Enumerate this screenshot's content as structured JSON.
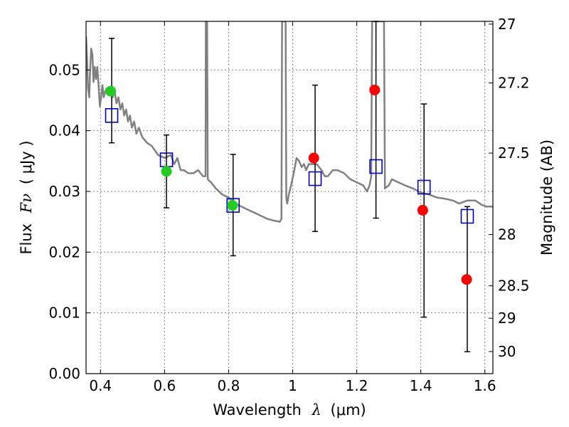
{
  "chart_data": {
    "type": "scatter",
    "xlabel": "Wavelength",
    "xlabel_symbol": "λ",
    "xlabel_unit": "(μm)",
    "ylabel": "Flux",
    "ylabel_symbol": "Fν",
    "ylabel_unit": "( μJy )",
    "y2label": "Magnitude (AB)",
    "xlim": [
      0.355,
      1.625
    ],
    "ylim": [
      0,
      0.058
    ],
    "grid": true,
    "x_ticks": [
      0.4,
      0.6,
      0.8,
      1.0,
      1.2,
      1.4,
      1.6
    ],
    "x_tick_labels": [
      "0.4",
      "0.6",
      "0.8",
      "1",
      "1.2",
      "1.4",
      "1.6"
    ],
    "y_ticks": [
      0.0,
      0.01,
      0.02,
      0.03,
      0.04,
      0.05
    ],
    "y_tick_labels": [
      "0.00",
      "0.01",
      "0.02",
      "0.03",
      "0.04",
      "0.05"
    ],
    "y2_ticks": [
      {
        "label": "27",
        "value": 27.0
      },
      {
        "label": "27.2",
        "value": 27.2
      },
      {
        "label": "27.5",
        "value": 27.5
      },
      {
        "label": "28",
        "value": 28.0
      },
      {
        "label": "28.5",
        "value": 28.5
      },
      {
        "label": "29",
        "value": 29.0
      },
      {
        "label": "30",
        "value": 30.0
      }
    ],
    "model_spectrum": {
      "color": "#808080",
      "points": [
        [
          0.355,
          0.0555
        ],
        [
          0.358,
          0.052
        ],
        [
          0.361,
          0.047
        ],
        [
          0.365,
          0.0455
        ],
        [
          0.368,
          0.0505
        ],
        [
          0.371,
          0.0535
        ],
        [
          0.375,
          0.0525
        ],
        [
          0.378,
          0.048
        ],
        [
          0.382,
          0.0505
        ],
        [
          0.386,
          0.0485
        ],
        [
          0.39,
          0.0505
        ],
        [
          0.394,
          0.0475
        ],
        [
          0.398,
          0.044
        ],
        [
          0.402,
          0.0455
        ],
        [
          0.406,
          0.0475
        ],
        [
          0.41,
          0.0455
        ],
        [
          0.415,
          0.0465
        ],
        [
          0.42,
          0.047
        ],
        [
          0.426,
          0.046
        ],
        [
          0.432,
          0.0465
        ],
        [
          0.438,
          0.0455
        ],
        [
          0.444,
          0.0465
        ],
        [
          0.45,
          0.0445
        ],
        [
          0.456,
          0.0455
        ],
        [
          0.462,
          0.0435
        ],
        [
          0.468,
          0.0445
        ],
        [
          0.474,
          0.0425
        ],
        [
          0.48,
          0.0435
        ],
        [
          0.486,
          0.0415
        ],
        [
          0.492,
          0.0425
        ],
        [
          0.498,
          0.0405
        ],
        [
          0.505,
          0.0415
        ],
        [
          0.512,
          0.0395
        ],
        [
          0.52,
          0.0405
        ],
        [
          0.53,
          0.039
        ],
        [
          0.545,
          0.038
        ],
        [
          0.56,
          0.0375
        ],
        [
          0.58,
          0.036
        ],
        [
          0.6,
          0.0355
        ],
        [
          0.62,
          0.036
        ],
        [
          0.63,
          0.0345
        ],
        [
          0.64,
          0.0355
        ],
        [
          0.65,
          0.0335
        ],
        [
          0.66,
          0.0335
        ],
        [
          0.675,
          0.033
        ],
        [
          0.69,
          0.033
        ],
        [
          0.705,
          0.0335
        ],
        [
          0.72,
          0.0325
        ],
        [
          0.728,
          0.0325
        ],
        [
          0.729,
          0.058
        ],
        [
          0.733,
          0.058
        ],
        [
          0.735,
          0.032
        ],
        [
          0.745,
          0.0315
        ],
        [
          0.76,
          0.0305
        ],
        [
          0.78,
          0.0295
        ],
        [
          0.8,
          0.029
        ],
        [
          0.82,
          0.028
        ],
        [
          0.84,
          0.0275
        ],
        [
          0.86,
          0.027
        ],
        [
          0.88,
          0.0265
        ],
        [
          0.9,
          0.026
        ],
        [
          0.92,
          0.0255
        ],
        [
          0.94,
          0.0252
        ],
        [
          0.96,
          0.025
        ],
        [
          0.965,
          0.0255
        ],
        [
          0.967,
          0.058
        ],
        [
          0.978,
          0.058
        ],
        [
          0.98,
          0.029
        ],
        [
          0.983,
          0.028
        ],
        [
          0.988,
          0.0295
        ],
        [
          0.995,
          0.031
        ],
        [
          1.005,
          0.0335
        ],
        [
          1.012,
          0.0355
        ],
        [
          1.02,
          0.035
        ],
        [
          1.028,
          0.034
        ],
        [
          1.035,
          0.0345
        ],
        [
          1.042,
          0.0335
        ],
        [
          1.05,
          0.0345
        ],
        [
          1.06,
          0.0345
        ],
        [
          1.075,
          0.0345
        ],
        [
          1.09,
          0.0335
        ],
        [
          1.1,
          0.0325
        ],
        [
          1.11,
          0.0325
        ],
        [
          1.125,
          0.0335
        ],
        [
          1.14,
          0.0335
        ],
        [
          1.16,
          0.033
        ],
        [
          1.18,
          0.032
        ],
        [
          1.2,
          0.0315
        ],
        [
          1.22,
          0.031
        ],
        [
          1.232,
          0.03
        ],
        [
          1.24,
          0.031
        ],
        [
          1.245,
          0.0325
        ],
        [
          1.248,
          0.058
        ],
        [
          1.285,
          0.058
        ],
        [
          1.288,
          0.0305
        ],
        [
          1.3,
          0.031
        ],
        [
          1.31,
          0.032
        ],
        [
          1.33,
          0.0315
        ],
        [
          1.35,
          0.031
        ],
        [
          1.375,
          0.0305
        ],
        [
          1.4,
          0.0298
        ],
        [
          1.425,
          0.0295
        ],
        [
          1.45,
          0.029
        ],
        [
          1.475,
          0.0288
        ],
        [
          1.5,
          0.0285
        ],
        [
          1.52,
          0.028
        ],
        [
          1.545,
          0.0285
        ],
        [
          1.57,
          0.0285
        ],
        [
          1.59,
          0.0278
        ],
        [
          1.605,
          0.0275
        ],
        [
          1.625,
          0.0275
        ]
      ]
    },
    "series": [
      {
        "marker": "open-square",
        "color": "#0000cc",
        "points": [
          {
            "x": 0.435,
            "y": 0.0425
          },
          {
            "x": 0.606,
            "y": 0.0352
          },
          {
            "x": 0.814,
            "y": 0.0277
          },
          {
            "x": 1.07,
            "y": 0.0321
          },
          {
            "x": 1.26,
            "y": 0.0341
          },
          {
            "x": 1.41,
            "y": 0.0307
          },
          {
            "x": 1.545,
            "y": 0.0259
          }
        ]
      },
      {
        "marker": "filled-circle",
        "color": "#22cc22",
        "points": [
          {
            "x": 0.432,
            "y": 0.0465
          },
          {
            "x": 0.606,
            "y": 0.0333
          },
          {
            "x": 0.812,
            "y": 0.0277
          }
        ]
      },
      {
        "marker": "filled-circle",
        "color": "#ff0000",
        "points": [
          {
            "x": 1.066,
            "y": 0.0355
          },
          {
            "x": 1.256,
            "y": 0.0467
          },
          {
            "x": 1.406,
            "y": 0.0269
          },
          {
            "x": 1.543,
            "y": 0.0155
          }
        ]
      }
    ],
    "error_bars": {
      "color": "#000000",
      "bars": [
        {
          "x": 0.435,
          "low": 0.038,
          "high": 0.0552
        },
        {
          "x": 0.606,
          "low": 0.0273,
          "high": 0.0393
        },
        {
          "x": 0.814,
          "low": 0.0194,
          "high": 0.0361
        },
        {
          "x": 1.07,
          "low": 0.0234,
          "high": 0.0475
        },
        {
          "x": 1.26,
          "low": 0.0256,
          "high": 0.058
        },
        {
          "x": 1.41,
          "low": 0.0093,
          "high": 0.0444
        },
        {
          "x": 1.545,
          "low": 0.0036,
          "high": 0.0275
        }
      ]
    }
  }
}
